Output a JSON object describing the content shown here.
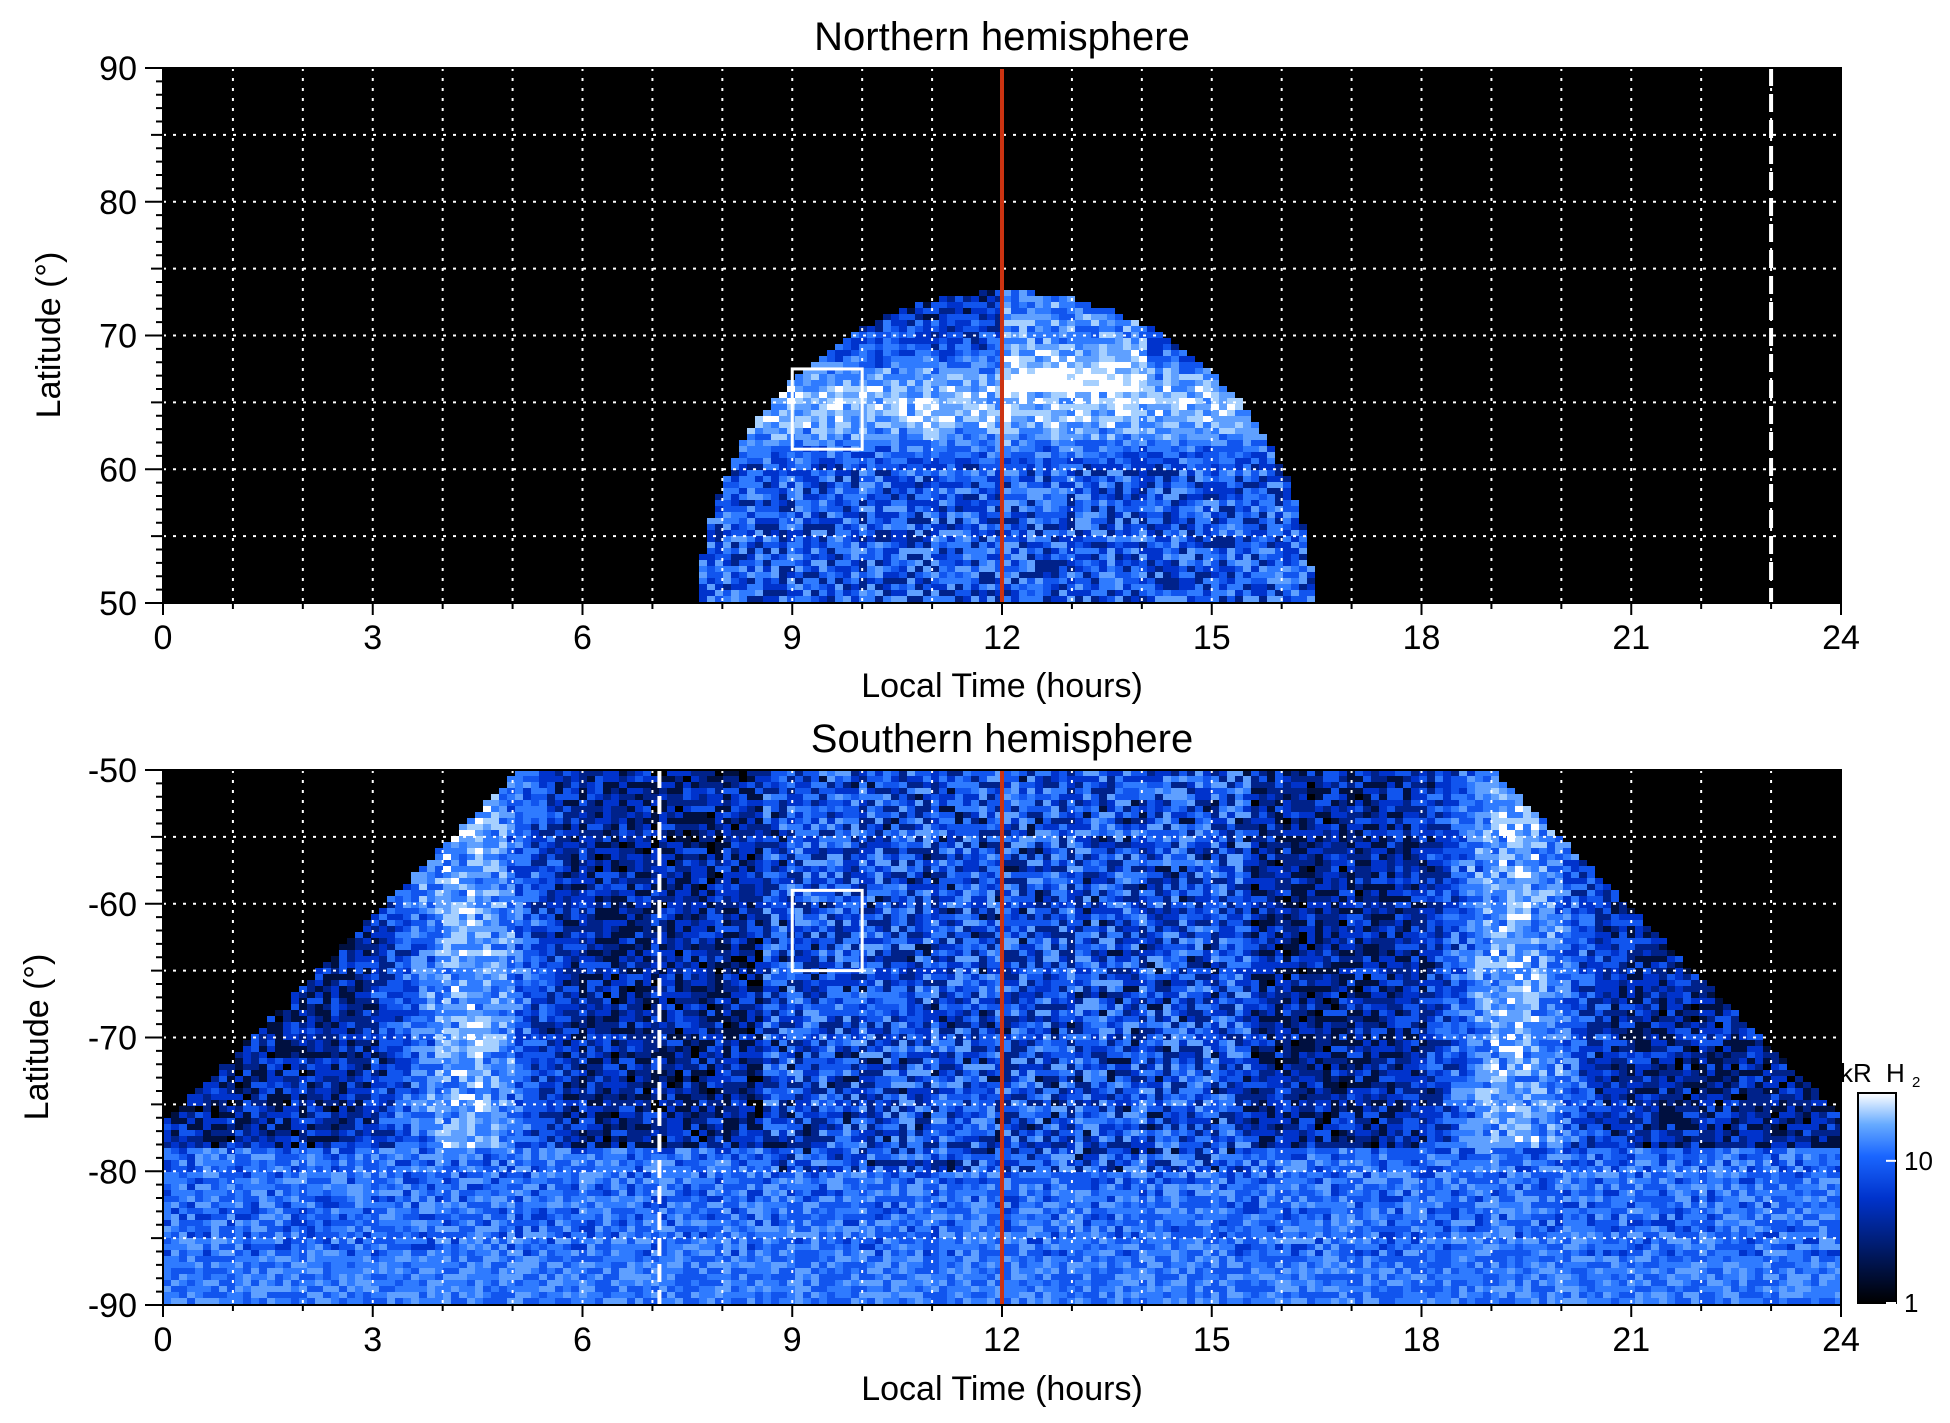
{
  "colors": {
    "background": "#000000",
    "colormap": [
      "#000000",
      "#001a66",
      "#0033cc",
      "#1a66ff",
      "#4d99ff",
      "#99ccff",
      "#ffffff"
    ],
    "noon_line": "#cc3311",
    "grid": "#ffffff",
    "box": "#ffffff",
    "dashed_marker": "#ffffff"
  },
  "chart_data": [
    {
      "type": "heatmap",
      "title": "Northern hemisphere",
      "xlabel": "Local Time (hours)",
      "ylabel": "Latitude (°)",
      "xlim": [
        0,
        24
      ],
      "ylim": [
        50,
        90
      ],
      "xticks": [
        "0",
        "3",
        "6",
        "9",
        "12",
        "15",
        "18",
        "21",
        "24"
      ],
      "yticks": [
        "50",
        "60",
        "70",
        "80",
        "90"
      ],
      "grid": true,
      "grid_x_step_hours": 1,
      "grid_y_step_deg": 5,
      "noon_line_x": 12,
      "dashed_marker_x": 23,
      "box": {
        "x0": 9,
        "x1": 10,
        "y0": 61.5,
        "y1": 67.5
      },
      "emission_region": {
        "x_min": 7.7,
        "x_max": 16.5,
        "peak_lat": 73.5,
        "oval_lat": 65
      }
    },
    {
      "type": "heatmap",
      "title": "Southern hemisphere",
      "xlabel": "Local Time (hours)",
      "ylabel": "Latitude (°)",
      "xlim": [
        0,
        24
      ],
      "ylim": [
        -90,
        -50
      ],
      "xticks": [
        "0",
        "3",
        "6",
        "9",
        "12",
        "15",
        "18",
        "21",
        "24"
      ],
      "yticks": [
        "-50",
        "-60",
        "-70",
        "-80",
        "-90"
      ],
      "grid": true,
      "grid_x_step_hours": 1,
      "grid_y_step_deg": 5,
      "noon_line_x": 12,
      "dashed_marker_x": 7.1,
      "box": {
        "x0": 9,
        "x1": 10,
        "y0": -65,
        "y1": -59
      },
      "emission_region": {
        "x_min": 0,
        "x_max": 24,
        "edge_lat": -74,
        "oval_lat": -72
      },
      "colorbar": {
        "label_kr": "kR",
        "label_species": "H",
        "label_sub": "2",
        "scale": "log",
        "range": [
          1,
          30
        ],
        "ticks": [
          "1",
          "10"
        ]
      }
    }
  ]
}
